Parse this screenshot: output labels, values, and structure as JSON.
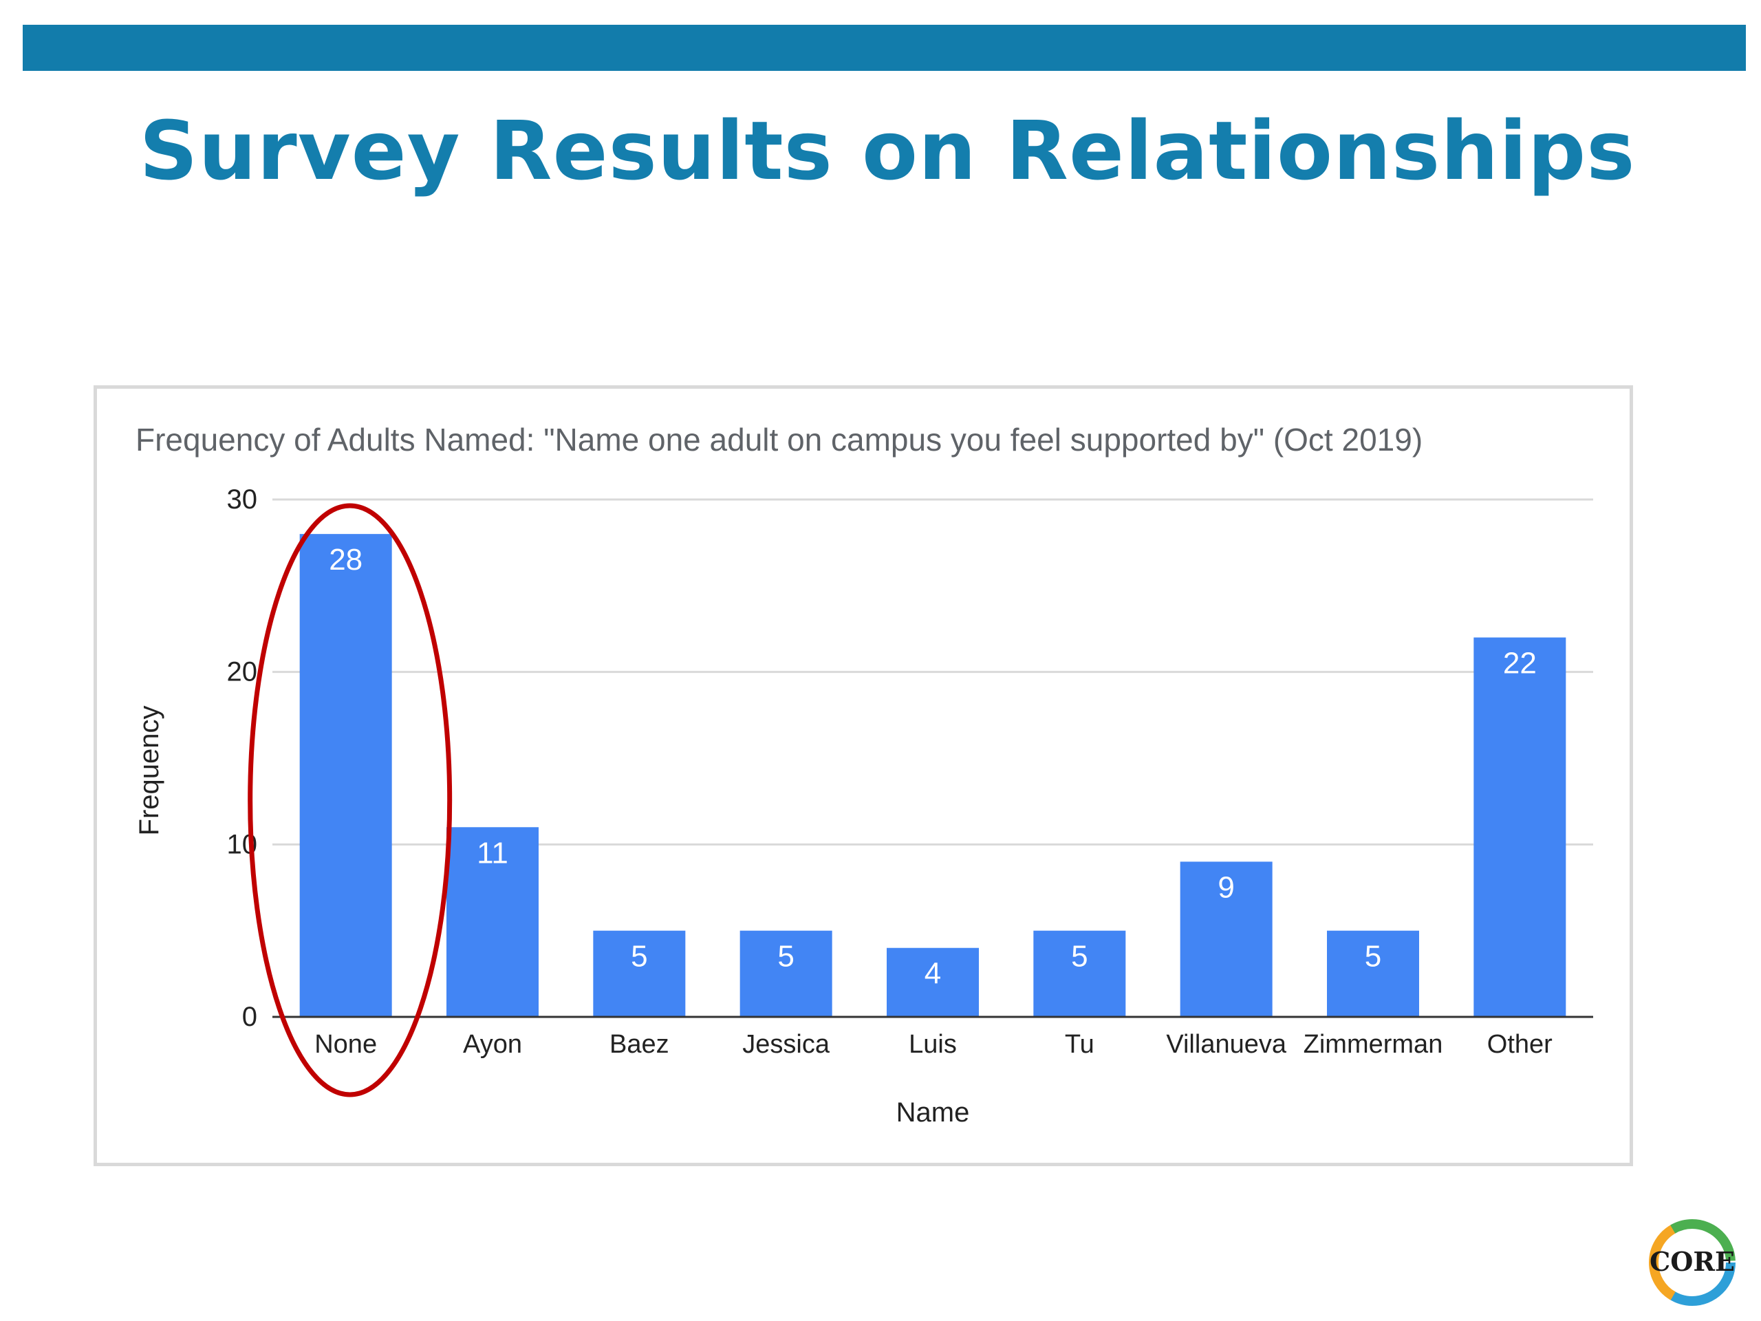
{
  "slide": {
    "title": "Survey Results on Relationships"
  },
  "chart_data": {
    "type": "bar",
    "title": "Frequency of Adults Named: \"Name one adult on campus you feel supported by\" (Oct 2019)",
    "xlabel": "Name",
    "ylabel": "Frequency",
    "categories": [
      "None",
      "Ayon",
      "Baez",
      "Jessica",
      "Luis",
      "Tu",
      "Villanueva",
      "Zimmerman",
      "Other"
    ],
    "values": [
      28,
      11,
      5,
      5,
      4,
      5,
      9,
      5,
      22
    ],
    "ylim": [
      0,
      30
    ],
    "yticks": [
      0,
      10,
      20,
      30
    ],
    "grid": true,
    "legend": "none",
    "data_labels": true,
    "highlight": {
      "category": "None",
      "shape": "ellipse",
      "color": "#c00000"
    },
    "colors": {
      "bar": "#4285f4",
      "grid": "#d9d9d9",
      "axis": "#333333"
    }
  },
  "logo": {
    "text": "CORE",
    "colors": [
      "#2e9fd8",
      "#f5a623",
      "#4caf50"
    ]
  }
}
